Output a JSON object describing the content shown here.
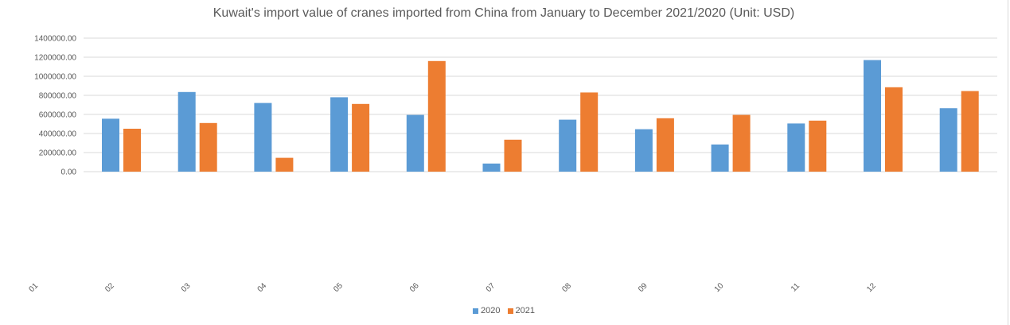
{
  "chart_data": {
    "type": "bar",
    "title": "Kuwait's import value of cranes imported from China from January to December 2021/2020 (Unit: USD)",
    "categories": [
      "01",
      "02",
      "03",
      "04",
      "05",
      "06",
      "07",
      "08",
      "09",
      "10",
      "11",
      "12"
    ],
    "series": [
      {
        "name": "2020",
        "color": "#5b9bd5",
        "values": [
          555000,
          835000,
          720000,
          780000,
          595000,
          85000,
          545000,
          445000,
          285000,
          505000,
          1170000,
          665000
        ]
      },
      {
        "name": "2021",
        "color": "#ed7d31",
        "values": [
          450000,
          510000,
          145000,
          710000,
          1160000,
          335000,
          830000,
          560000,
          595000,
          535000,
          885000,
          845000
        ]
      }
    ],
    "y_ticks": [
      "0.00",
      "200000.00",
      "400000.00",
      "600000.00",
      "800000.00",
      "1000000.00",
      "1200000.00",
      "1400000.00"
    ],
    "ylim": [
      0,
      1400000
    ],
    "grid": true,
    "legend_position": "bottom"
  }
}
